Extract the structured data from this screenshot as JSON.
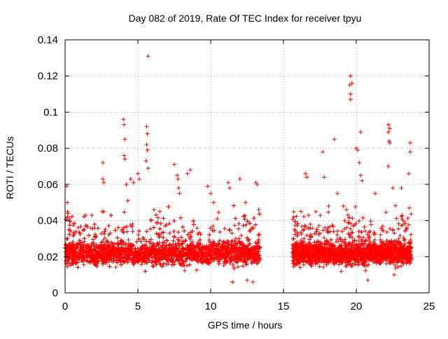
{
  "chart_data": {
    "type": "scatter",
    "title": "Day 082 of 2019, Rate Of TEC Index for receiver tpyu",
    "xlabel": "GPS time / hours",
    "ylabel": "ROTI / TECUs",
    "xlim": [
      0,
      25
    ],
    "ylim": [
      0,
      0.14
    ],
    "xticks": [
      0,
      5,
      10,
      15,
      20,
      25
    ],
    "xtick_labels": [
      "0",
      "5",
      "10",
      "15",
      "20",
      "25"
    ],
    "yticks": [
      0,
      0.02,
      0.04,
      0.06,
      0.08,
      0.1,
      0.12,
      0.14
    ],
    "ytick_labels": [
      "0",
      "0.02",
      "0.04",
      "0.06",
      "0.08",
      "0.1",
      "0.12",
      "0.14"
    ],
    "grid": true,
    "marker": "+",
    "color": "#ff0000",
    "series": [
      {
        "name": "ROTI",
        "segments": [
          {
            "x_range": [
              0.0,
              13.4
            ],
            "base_level": 0.022,
            "points": [
              [
                0.1,
                0.059
              ],
              [
                0.15,
                0.05
              ],
              [
                0.2,
                0.044
              ],
              [
                0.3,
                0.041
              ],
              [
                0.9,
                0.036
              ],
              [
                1.4,
                0.043
              ],
              [
                2.6,
                0.072
              ],
              [
                2.6,
                0.063
              ],
              [
                2.65,
                0.061
              ],
              [
                2.55,
                0.045
              ],
              [
                4.0,
                0.096
              ],
              [
                4.05,
                0.093
              ],
              [
                4.1,
                0.085
              ],
              [
                4.05,
                0.076
              ],
              [
                4.1,
                0.074
              ],
              [
                4.2,
                0.06
              ],
              [
                4.5,
                0.063
              ],
              [
                4.7,
                0.061
              ],
              [
                4.3,
                0.051
              ],
              [
                5.0,
                0.066
              ],
              [
                5.1,
                0.063
              ],
              [
                5.6,
                0.092
              ],
              [
                5.65,
                0.088
              ],
              [
                5.6,
                0.082
              ],
              [
                5.65,
                0.079
              ],
              [
                5.55,
                0.073
              ],
              [
                5.7,
                0.069
              ],
              [
                5.7,
                0.131
              ],
              [
                6.5,
                0.045
              ],
              [
                7.5,
                0.071
              ],
              [
                7.7,
                0.065
              ],
              [
                7.75,
                0.063
              ],
              [
                7.8,
                0.058
              ],
              [
                7.85,
                0.055
              ],
              [
                8.6,
                0.068
              ],
              [
                8.4,
                0.066
              ],
              [
                9.8,
                0.059
              ],
              [
                10.0,
                0.055
              ],
              [
                10.2,
                0.05
              ],
              [
                11.2,
                0.061
              ],
              [
                11.3,
                0.058
              ],
              [
                12.0,
                0.063
              ],
              [
                12.4,
                0.05
              ],
              [
                13.1,
                0.061
              ],
              [
                13.2,
                0.06
              ],
              [
                13.3,
                0.046
              ],
              [
                11.5,
                0.006
              ],
              [
                12.9,
                0.006
              ],
              [
                12.5,
                0.007
              ]
            ]
          },
          {
            "x_range": [
              15.6,
              23.8
            ],
            "base_level": 0.022,
            "points": [
              [
                16.5,
                0.066
              ],
              [
                16.6,
                0.064
              ],
              [
                17.7,
                0.078
              ],
              [
                17.8,
                0.064
              ],
              [
                18.5,
                0.085
              ],
              [
                18.7,
                0.055
              ],
              [
                19.1,
                0.048
              ],
              [
                19.6,
                0.12
              ],
              [
                19.7,
                0.116
              ],
              [
                19.55,
                0.115
              ],
              [
                19.6,
                0.11
              ],
              [
                19.6,
                0.107
              ],
              [
                20.0,
                0.08
              ],
              [
                20.1,
                0.079
              ],
              [
                20.3,
                0.089
              ],
              [
                20.2,
                0.072
              ],
              [
                20.3,
                0.065
              ],
              [
                20.4,
                0.062
              ],
              [
                21.3,
                0.055
              ],
              [
                22.2,
                0.093
              ],
              [
                22.3,
                0.091
              ],
              [
                22.2,
                0.089
              ],
              [
                22.25,
                0.084
              ],
              [
                22.3,
                0.083
              ],
              [
                22.2,
                0.07
              ],
              [
                22.5,
                0.058
              ],
              [
                23.1,
                0.058
              ],
              [
                23.7,
                0.083
              ],
              [
                23.7,
                0.078
              ],
              [
                23.6,
                0.066
              ],
              [
                23.65,
                0.047
              ],
              [
                16.2,
                0.045
              ],
              [
                18.1,
                0.048
              ],
              [
                20.8,
                0.007
              ],
              [
                22.6,
                0.01
              ]
            ]
          }
        ]
      }
    ]
  }
}
